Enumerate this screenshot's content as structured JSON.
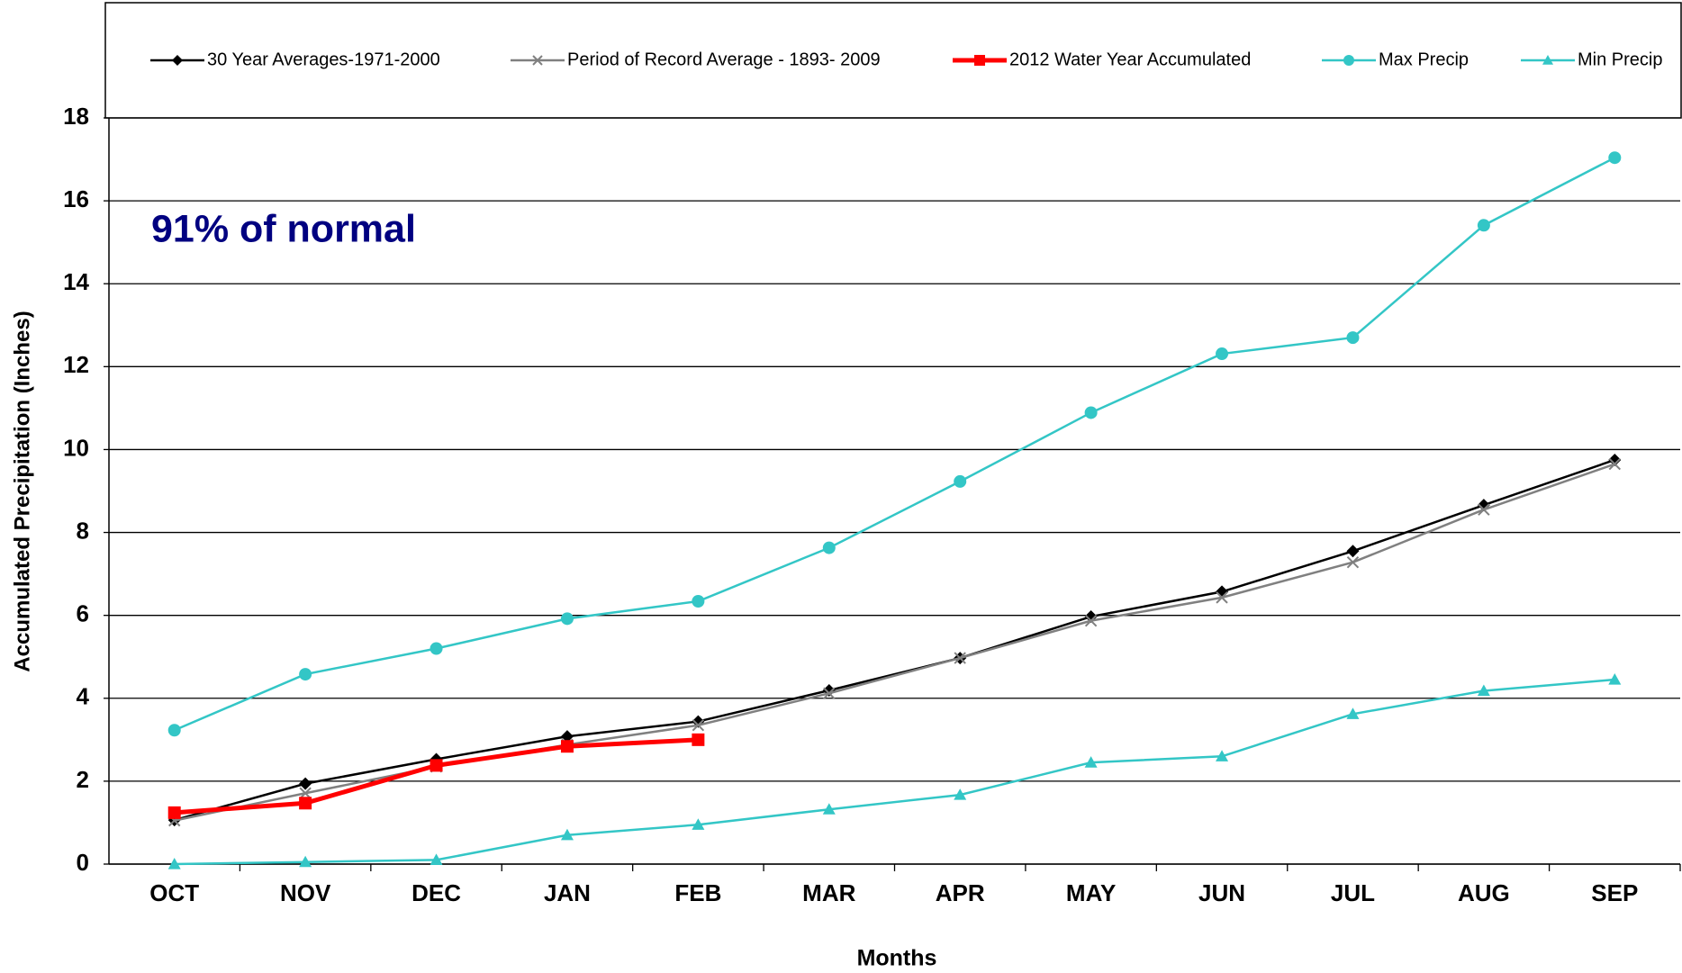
{
  "chart_data": {
    "type": "line",
    "annotation": "91% of normal",
    "xlabel": "Months",
    "ylabel": "Accumulated Precipitation (Inches)",
    "categories": [
      "OCT",
      "NOV",
      "DEC",
      "JAN",
      "FEB",
      "MAR",
      "APR",
      "MAY",
      "JUN",
      "JUL",
      "AUG",
      "SEP"
    ],
    "ylim": [
      0,
      18
    ],
    "yticks": [
      0,
      2,
      4,
      6,
      8,
      10,
      12,
      14,
      16,
      18
    ],
    "grid": true,
    "legend": "top",
    "series": [
      {
        "name": "30 Year Averages-1971-2000",
        "color": "#000000",
        "marker": "diamond",
        "values": [
          1.06,
          1.94,
          2.53,
          3.08,
          3.44,
          4.19,
          4.97,
          5.97,
          6.57,
          7.55,
          8.66,
          9.75
        ]
      },
      {
        "name": "Period of Record Average - 1893- 2009",
        "color": "#808080",
        "marker": "x",
        "values": [
          1.05,
          1.71,
          2.35,
          2.88,
          3.35,
          4.12,
          4.97,
          5.87,
          6.43,
          7.28,
          8.55,
          9.65
        ]
      },
      {
        "name": "2012 Water Year Accumulated",
        "color": "#ff0000",
        "marker": "square",
        "values": [
          1.24,
          1.47,
          2.38,
          2.84,
          3.0,
          null,
          null,
          null,
          null,
          null,
          null,
          null
        ]
      },
      {
        "name": "Max Precip",
        "color": "#33c6c6",
        "marker": "circle",
        "values": [
          3.23,
          4.58,
          5.2,
          5.92,
          6.34,
          7.63,
          9.23,
          10.89,
          12.31,
          12.7,
          15.41,
          17.04
        ]
      },
      {
        "name": "Min Precip",
        "color": "#33c6c6",
        "marker": "triangle",
        "values": [
          0,
          0.05,
          0.1,
          0.7,
          0.95,
          1.32,
          1.67,
          2.45,
          2.6,
          3.62,
          4.18,
          4.45
        ]
      }
    ]
  }
}
